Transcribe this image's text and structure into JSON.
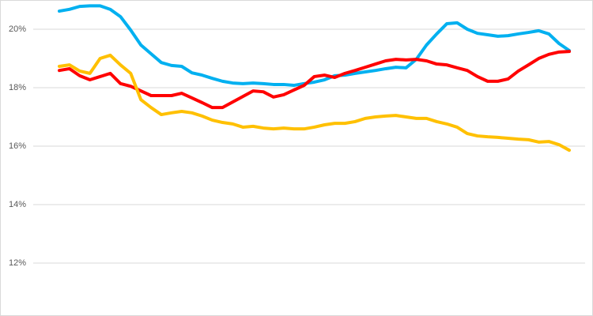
{
  "chart_data": {
    "type": "line",
    "categories": [
      null,
      null,
      null,
      null,
      null,
      null,
      null,
      null,
      null,
      null,
      null,
      null,
      null,
      null,
      null,
      null,
      null,
      null,
      null,
      null,
      null,
      null,
      null,
      null,
      null,
      null,
      null,
      null,
      null,
      null,
      null,
      null,
      null,
      null,
      null,
      null,
      null,
      null,
      null,
      null,
      null,
      null,
      null,
      null,
      null,
      null,
      null,
      null,
      null,
      null,
      null
    ],
    "series": [
      {
        "color": "#00b0f0",
        "values": [
          20.62,
          20.68,
          20.78,
          20.8,
          20.8,
          20.68,
          20.43,
          19.97,
          19.46,
          19.16,
          18.86,
          18.76,
          18.73,
          18.51,
          18.43,
          18.32,
          18.22,
          18.16,
          18.14,
          18.16,
          18.14,
          18.11,
          18.11,
          18.08,
          18.14,
          18.19,
          18.27,
          18.41,
          18.43,
          18.49,
          18.54,
          18.59,
          18.65,
          18.7,
          18.68,
          18.97,
          19.46,
          19.84,
          20.19,
          20.22,
          20.0,
          19.86,
          19.81,
          19.76,
          19.78,
          19.84,
          19.89,
          19.95,
          19.84,
          19.51,
          19.27
        ]
      },
      {
        "color": "#ff0000",
        "values": [
          18.59,
          18.65,
          18.41,
          18.27,
          18.38,
          18.49,
          18.14,
          18.05,
          17.89,
          17.73,
          17.73,
          17.73,
          17.81,
          17.65,
          17.49,
          17.32,
          17.32,
          17.51,
          17.7,
          17.89,
          17.86,
          17.68,
          17.76,
          17.92,
          18.08,
          18.38,
          18.43,
          18.35,
          18.49,
          18.59,
          18.7,
          18.81,
          18.92,
          18.97,
          18.95,
          18.97,
          18.92,
          18.81,
          18.78,
          18.68,
          18.59,
          18.38,
          18.22,
          18.22,
          18.3,
          18.57,
          18.78,
          19.0,
          19.14,
          19.22,
          19.24
        ]
      },
      {
        "color": "#ffc000",
        "values": [
          18.73,
          18.78,
          18.57,
          18.49,
          19.0,
          19.11,
          18.78,
          18.49,
          17.59,
          17.32,
          17.08,
          17.14,
          17.19,
          17.14,
          17.03,
          16.89,
          16.81,
          16.76,
          16.65,
          16.68,
          16.62,
          16.59,
          16.62,
          16.59,
          16.59,
          16.65,
          16.73,
          16.78,
          16.78,
          16.84,
          16.95,
          17.0,
          17.03,
          17.05,
          17.0,
          16.95,
          16.95,
          16.84,
          16.76,
          16.65,
          16.43,
          16.35,
          16.32,
          16.3,
          16.27,
          16.24,
          16.22,
          16.14,
          16.16,
          16.05,
          15.86
        ]
      }
    ],
    "ylim": [
      10.19,
      21
    ],
    "yticks": [
      {
        "value": 12,
        "label": "12%"
      },
      {
        "value": 14,
        "label": "14%"
      },
      {
        "value": 16,
        "label": "16%"
      },
      {
        "value": 18,
        "label": "18%"
      },
      {
        "value": 20,
        "label": "20%"
      }
    ],
    "grid": true
  }
}
